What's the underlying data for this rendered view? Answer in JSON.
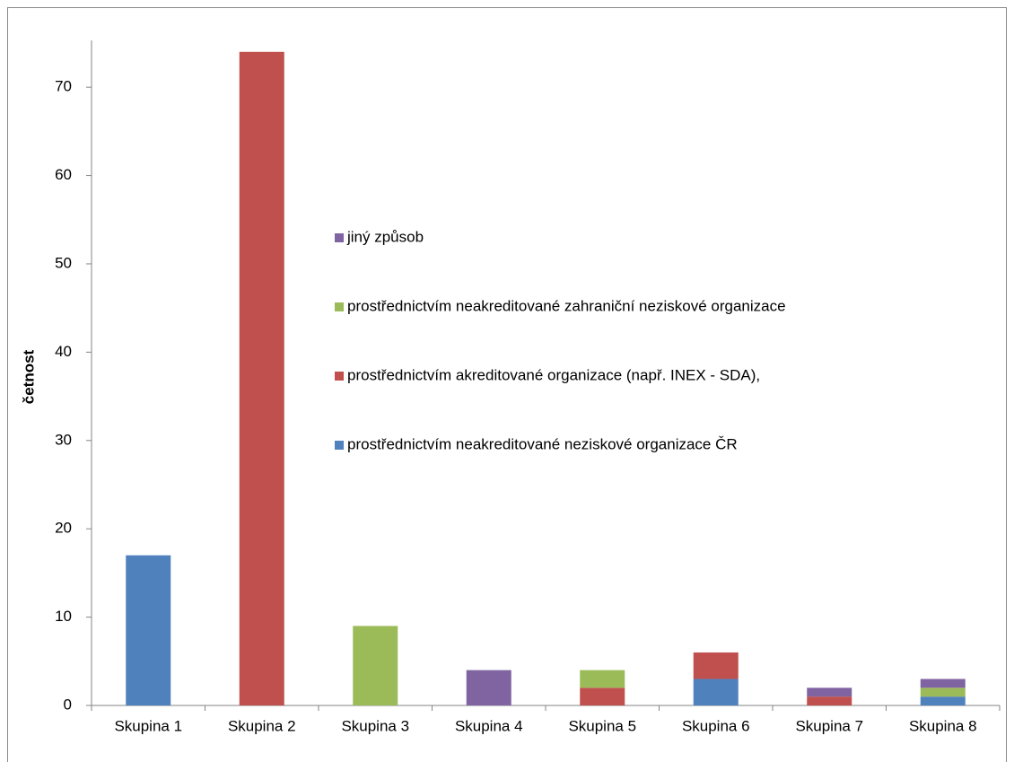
{
  "chart_data": {
    "type": "stacked_bar",
    "y_label": "četnost",
    "categories": [
      "Skupina 1",
      "Skupina 2",
      "Skupina 3",
      "Skupina 4",
      "Skupina 5",
      "Skupina 6",
      "Skupina 7",
      "Skupina 8"
    ],
    "series": [
      {
        "name": "prostřednictvím neakreditované neziskové organizace ČR",
        "color": "#4f81bd",
        "values": [
          17,
          0,
          0,
          0,
          0,
          3,
          0,
          1
        ]
      },
      {
        "name": "prostřednictvím akreditované organizace (např. INEX - SDA),",
        "color": "#c0504d",
        "values": [
          0,
          74,
          0,
          0,
          2,
          3,
          1,
          0
        ]
      },
      {
        "name": "prostřednictvím neakreditované zahraniční neziskové organizace",
        "color": "#9bbb59",
        "values": [
          0,
          0,
          9,
          0,
          2,
          0,
          0,
          1
        ]
      },
      {
        "name": "jiný způsob",
        "color": "#8064a2",
        "values": [
          0,
          0,
          0,
          4,
          0,
          0,
          1,
          1
        ]
      }
    ],
    "ylim": [
      0,
      75.3
    ],
    "yticks": [
      0,
      10,
      20,
      30,
      40,
      50,
      60,
      70
    ],
    "legend": "center"
  }
}
